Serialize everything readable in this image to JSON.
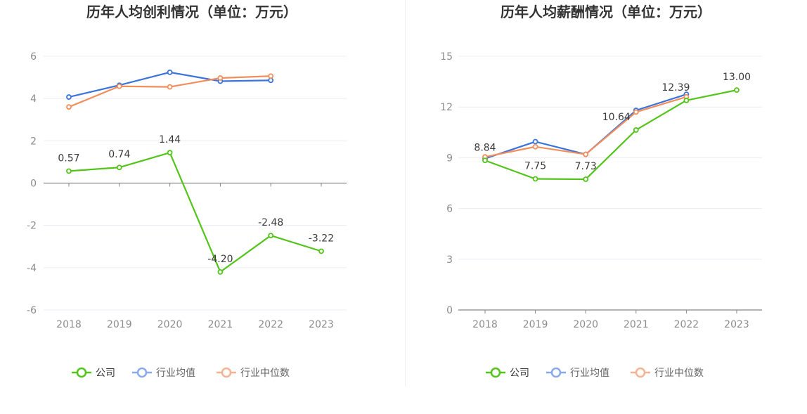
{
  "colors": {
    "company": "#52c41a",
    "industry_avg": "#3b73dc",
    "industry_median": "#f28e5b",
    "grid": "#e9ecf6",
    "axis": "#888888"
  },
  "legend": {
    "items": [
      {
        "label": "公司",
        "color": "#52c41a",
        "legend_color": "#52c41a",
        "text_color": "#333333"
      },
      {
        "label": "行业均值",
        "color": "#3b73dc",
        "legend_color": "#8aa9ec",
        "text_color": "#666666"
      },
      {
        "label": "行业中位数",
        "color": "#f28e5b",
        "legend_color": "#f6b393",
        "text_color": "#666666"
      }
    ]
  },
  "chart_data": [
    {
      "type": "line",
      "title": "历年人均创利情况（单位：万元）",
      "categories": [
        "2018",
        "2019",
        "2020",
        "2021",
        "2022",
        "2023"
      ],
      "ylim": [
        -6,
        6
      ],
      "yticks": [
        "-6",
        "-4",
        "-2",
        "0",
        "2",
        "4",
        "6"
      ],
      "ytick_values": [
        -6,
        -4,
        -2,
        0,
        2,
        4,
        6
      ],
      "grid": true,
      "legend_position": "bottom",
      "series": [
        {
          "name": "公司",
          "values": [
            0.57,
            0.74,
            1.44,
            -4.2,
            -2.48,
            -3.22
          ],
          "labels": [
            "0.57",
            "0.74",
            "1.44",
            "-4.20",
            "-2.48",
            "-3.22"
          ]
        },
        {
          "name": "行业均值",
          "values": [
            4.07,
            4.63,
            5.24,
            4.82,
            4.86,
            null
          ]
        },
        {
          "name": "行业中位数",
          "values": [
            3.6,
            4.58,
            4.55,
            4.97,
            5.06,
            null
          ]
        }
      ]
    },
    {
      "type": "line",
      "title": "历年人均薪酬情况（单位：万元）",
      "categories": [
        "2018",
        "2019",
        "2020",
        "2021",
        "2022",
        "2023"
      ],
      "ylim": [
        0,
        15
      ],
      "yticks": [
        "0",
        "3",
        "6",
        "9",
        "12",
        "15"
      ],
      "ytick_values": [
        0,
        3,
        6,
        9,
        12,
        15
      ],
      "grid": true,
      "legend_position": "bottom",
      "series": [
        {
          "name": "公司",
          "values": [
            8.84,
            7.75,
            7.73,
            10.64,
            12.39,
            13.0
          ],
          "labels": [
            "8.84",
            "7.75",
            "7.73",
            "10.64",
            "12.39",
            "13.00"
          ]
        },
        {
          "name": "行业均值",
          "values": [
            8.95,
            9.95,
            9.2,
            11.8,
            12.75,
            null
          ]
        },
        {
          "name": "行业中位数",
          "values": [
            9.05,
            9.65,
            9.2,
            11.7,
            12.6,
            null
          ]
        }
      ]
    }
  ]
}
